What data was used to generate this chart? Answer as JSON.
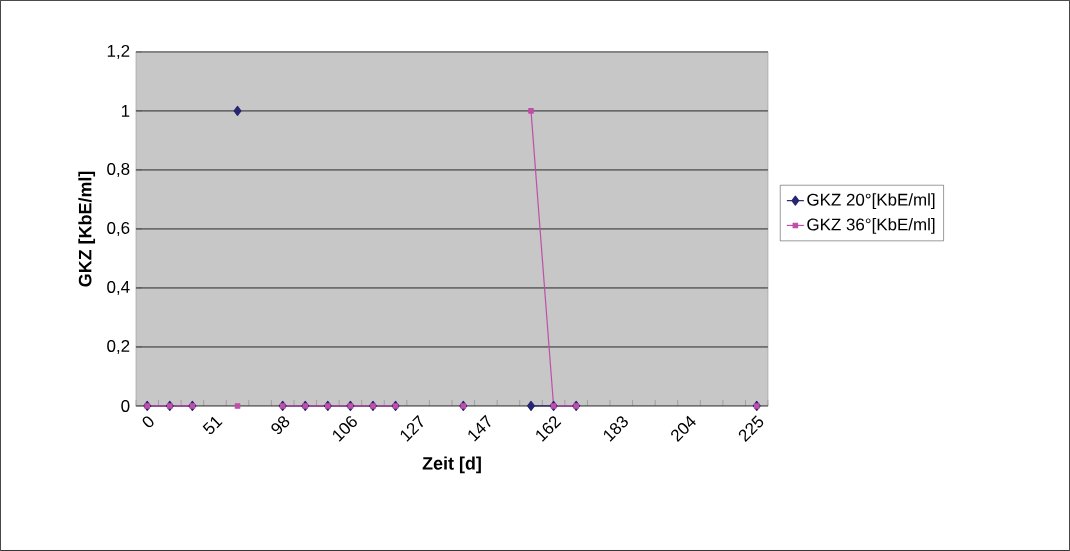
{
  "chart_data": {
    "type": "line",
    "xlabel": "Zeit [d]",
    "ylabel": "GKZ [KbE/ml]",
    "categories": [
      "0",
      null,
      null,
      "51",
      null,
      null,
      "98",
      null,
      null,
      "106",
      null,
      null,
      "127",
      null,
      null,
      "147",
      null,
      null,
      "162",
      null,
      null,
      "183",
      null,
      null,
      "204",
      null,
      null,
      "225"
    ],
    "series": [
      {
        "name": "GKZ 20°[KbE/ml]",
        "color": "#262673",
        "marker": "diamond",
        "values": [
          0,
          0,
          0,
          null,
          1,
          null,
          0,
          0,
          0,
          0,
          0,
          0,
          null,
          null,
          0,
          null,
          null,
          0,
          0,
          0,
          null,
          null,
          null,
          null,
          null,
          null,
          null,
          0
        ]
      },
      {
        "name": "GKZ 36°[KbE/ml]",
        "color": "#c04fa8",
        "marker": "square",
        "values": [
          0,
          0,
          0,
          null,
          0,
          null,
          0,
          0,
          0,
          0,
          0,
          0,
          null,
          null,
          0,
          null,
          null,
          1,
          0,
          0,
          null,
          null,
          null,
          null,
          null,
          null,
          null,
          0
        ]
      }
    ],
    "ylim": [
      0,
      1.2
    ],
    "yticks": [
      0,
      {
        "value": 0.2,
        "label": "0,2"
      },
      {
        "value": 0.4,
        "label": "0,4"
      },
      {
        "value": 0.6,
        "label": "0,6"
      },
      {
        "value": 0.8,
        "label": "0,8"
      },
      1,
      {
        "value": 1.2,
        "label": "1,2"
      }
    ],
    "grid": "y",
    "legend": "right",
    "line_style": "solid"
  }
}
